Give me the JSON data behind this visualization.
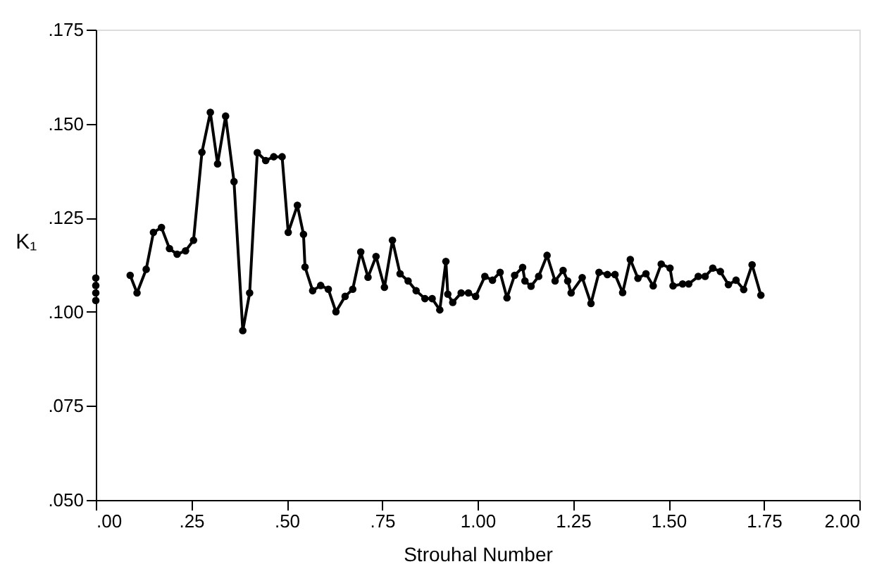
{
  "chart_data": {
    "type": "line",
    "xlabel": "Strouhal Number",
    "ylabel": "K₁",
    "xlim": [
      0,
      2.0
    ],
    "ylim": [
      0.05,
      0.175
    ],
    "xticks": [
      {
        "value": 0,
        "label": ".00"
      },
      {
        "value": 0.25,
        "label": ".25"
      },
      {
        "value": 0.5,
        "label": ".50"
      },
      {
        "value": 0.75,
        "label": ".75"
      },
      {
        "value": 1.0,
        "label": "1.00"
      },
      {
        "value": 1.25,
        "label": "1.25"
      },
      {
        "value": 1.5,
        "label": "1.50"
      },
      {
        "value": 1.75,
        "label": "1.75"
      },
      {
        "value": 2.0,
        "label": "2.00"
      }
    ],
    "yticks": [
      {
        "value": 0.05,
        "label": ".050"
      },
      {
        "value": 0.075,
        "label": ".075"
      },
      {
        "value": 0.1,
        "label": ".100"
      },
      {
        "value": 0.125,
        "label": ".125"
      },
      {
        "value": 0.15,
        "label": ".150"
      },
      {
        "value": 0.175,
        "label": ".175"
      }
    ],
    "grid": false,
    "marker": "circle",
    "line_style": "solid",
    "series": [
      {
        "color": "#000000",
        "x": [
          0.09,
          0.108,
          0.132,
          0.151,
          0.172,
          0.193,
          0.213,
          0.235,
          0.256,
          0.278,
          0.3,
          0.319,
          0.34,
          0.362,
          0.385,
          0.403,
          0.423,
          0.445,
          0.466,
          0.488,
          0.504,
          0.528,
          0.544,
          0.548,
          0.568,
          0.589,
          0.609,
          0.629,
          0.653,
          0.673,
          0.694,
          0.713,
          0.734,
          0.756,
          0.777,
          0.797,
          0.818,
          0.839,
          0.862,
          0.881,
          0.901,
          0.917,
          0.922,
          0.935,
          0.957,
          0.976,
          0.995,
          1.019,
          1.039,
          1.059,
          1.077,
          1.097,
          1.118,
          1.124,
          1.14,
          1.16,
          1.182,
          1.203,
          1.224,
          1.236,
          1.245,
          1.274,
          1.297,
          1.318,
          1.34,
          1.36,
          1.38,
          1.4,
          1.42,
          1.441,
          1.46,
          1.481,
          1.504,
          1.512,
          1.537,
          1.553,
          1.578,
          1.596,
          1.616,
          1.636,
          1.657,
          1.677,
          1.697,
          1.719,
          1.742
        ],
        "values": [
          0.1097,
          0.105,
          0.1113,
          0.1211,
          0.1224,
          0.1168,
          0.1153,
          0.1162,
          0.119,
          0.1424,
          0.153,
          0.1393,
          0.152,
          0.1346,
          0.095,
          0.105,
          0.1423,
          0.1402,
          0.1412,
          0.1412,
          0.1211,
          0.1283,
          0.1206,
          0.1119,
          0.1056,
          0.107,
          0.106,
          0.1,
          0.1041,
          0.106,
          0.1159,
          0.1092,
          0.1147,
          0.1065,
          0.119,
          0.1101,
          0.1082,
          0.1056,
          0.1035,
          0.1035,
          0.1005,
          0.1134,
          0.1047,
          0.1025,
          0.105,
          0.105,
          0.1041,
          0.1094,
          0.1084,
          0.1105,
          0.1037,
          0.1097,
          0.1118,
          0.1082,
          0.1068,
          0.1094,
          0.115,
          0.1082,
          0.111,
          0.1082,
          0.105,
          0.1091,
          0.1022,
          0.1105,
          0.1099,
          0.1099,
          0.1051,
          0.1139,
          0.1089,
          0.1101,
          0.1069,
          0.1127,
          0.1116,
          0.1069,
          0.1074,
          0.1074,
          0.1094,
          0.1094,
          0.1116,
          0.1107,
          0.1072,
          0.1084,
          0.1059,
          0.1125,
          0.1044
        ]
      },
      {
        "type": "scatter",
        "color": "#000000",
        "x": [
          0,
          0,
          0,
          0
        ],
        "values": [
          0.103,
          0.105,
          0.107,
          0.109
        ]
      }
    ]
  }
}
